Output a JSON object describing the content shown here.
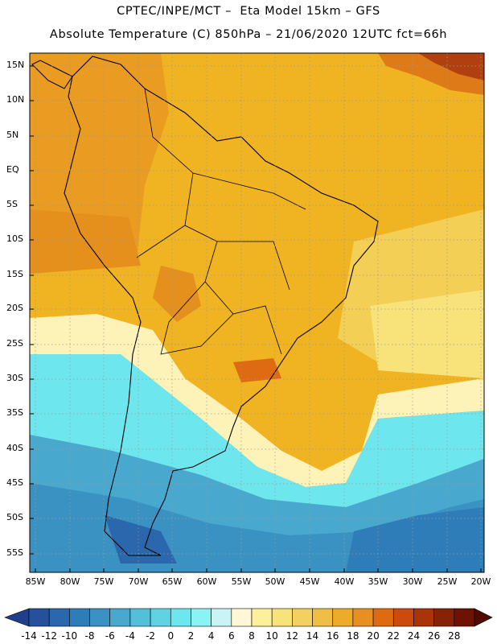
{
  "header": {
    "line1": "CPTEC/INPE/MCT –  Eta Model 15km – GFS",
    "line2": "Absolute Temperature (C) 850hPa – 21/06/2020 12UTC fct=66h"
  },
  "map": {
    "lat_labels": [
      "15N",
      "10N",
      "5N",
      "EQ",
      "5S",
      "10S",
      "15S",
      "20S",
      "25S",
      "30S",
      "35S",
      "40S",
      "45S",
      "50S",
      "55S"
    ],
    "lon_labels": [
      "85W",
      "80W",
      "75W",
      "70W",
      "65W",
      "60W",
      "55W",
      "50W",
      "45W",
      "40W",
      "35W",
      "30W",
      "25W",
      "20W"
    ]
  },
  "colorbar": {
    "labels": [
      "-14",
      "-12",
      "-10",
      "-8",
      "-6",
      "-4",
      "-2",
      "0",
      "2",
      "4",
      "6",
      "8",
      "10",
      "12",
      "14",
      "16",
      "18",
      "20",
      "22",
      "24",
      "26",
      "28"
    ],
    "colors": [
      "#1f3f8a",
      "#24509c",
      "#2a67ad",
      "#2f7db8",
      "#3a92c2",
      "#49a8cd",
      "#54bfd8",
      "#5fd3e3",
      "#6de6ee",
      "#8cf3f4",
      "#c9f3f4",
      "#fff7d6",
      "#fdf09a",
      "#f8e27a",
      "#f3d060",
      "#efbe44",
      "#edab2a",
      "#e78f20",
      "#de6a12",
      "#cc4a0c",
      "#aa3409",
      "#862306",
      "#6e1204",
      "#4f0a02"
    ]
  }
}
